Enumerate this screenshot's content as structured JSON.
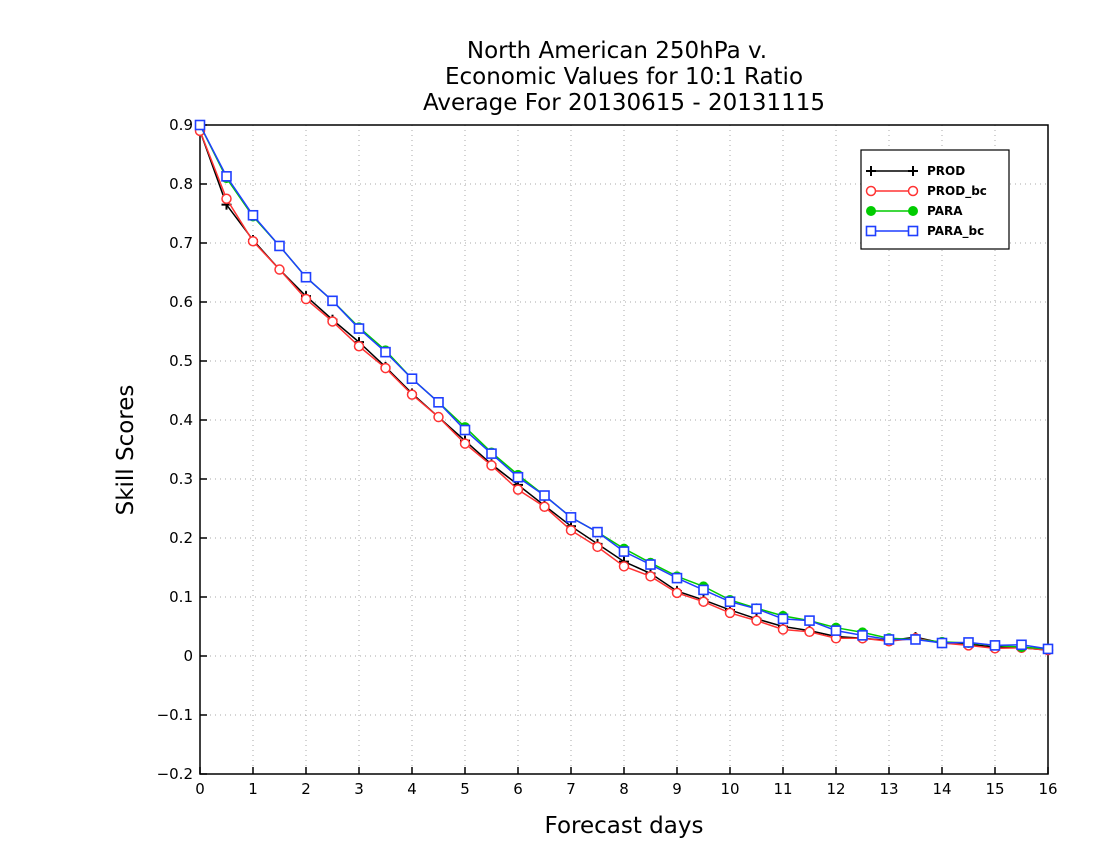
{
  "chart_data": {
    "type": "line",
    "title_lines": [
      "North American 250hPa v.",
      "Economic Values for 10:1 Ratio",
      "Average For 20130615 - 20131115"
    ],
    "xlabel": "Forecast days",
    "ylabel": "Skill Scores",
    "xlim": [
      0,
      16
    ],
    "ylim": [
      -0.2,
      0.9
    ],
    "xticks": [
      0,
      1,
      2,
      3,
      4,
      5,
      6,
      7,
      8,
      9,
      10,
      11,
      12,
      13,
      14,
      15,
      16
    ],
    "yticks": [
      -0.2,
      -0.1,
      0,
      0.1,
      0.2,
      0.3,
      0.4,
      0.5,
      0.6,
      0.7,
      0.8,
      0.9
    ],
    "ytick_labels": [
      "−0.2",
      "−0.1",
      "0",
      "0.1",
      "0.2",
      "0.3",
      "0.4",
      "0.5",
      "0.6",
      "0.7",
      "0.8",
      "0.9"
    ],
    "grid": true,
    "legend_position": "top-right",
    "x": [
      0,
      0.5,
      1,
      1.5,
      2,
      2.5,
      3,
      3.5,
      4,
      4.5,
      5,
      5.5,
      6,
      6.5,
      7,
      7.5,
      8,
      8.5,
      9,
      9.5,
      10,
      10.5,
      11,
      11.5,
      12,
      12.5,
      13,
      13.5,
      14,
      14.5,
      15,
      15.5,
      16
    ],
    "series": [
      {
        "name": "PROD",
        "color": "#000000",
        "marker": "plus",
        "values": [
          0.89,
          0.765,
          0.705,
          0.655,
          0.61,
          0.57,
          0.532,
          0.49,
          0.445,
          0.405,
          0.365,
          0.325,
          0.29,
          0.255,
          0.22,
          0.19,
          0.16,
          0.14,
          0.11,
          0.095,
          0.078,
          0.063,
          0.05,
          0.043,
          0.033,
          0.03,
          0.026,
          0.032,
          0.022,
          0.02,
          0.015,
          0.014,
          0.01
        ]
      },
      {
        "name": "PROD_bc",
        "color": "#ff3333",
        "marker": "circle",
        "values": [
          0.89,
          0.775,
          0.703,
          0.655,
          0.605,
          0.567,
          0.525,
          0.488,
          0.443,
          0.405,
          0.36,
          0.323,
          0.282,
          0.253,
          0.213,
          0.185,
          0.152,
          0.135,
          0.107,
          0.092,
          0.073,
          0.06,
          0.045,
          0.041,
          0.03,
          0.03,
          0.025,
          0.03,
          0.022,
          0.018,
          0.013,
          0.014,
          0.01
        ]
      },
      {
        "name": "PARA",
        "color": "#00cc00",
        "marker": "filled-circle",
        "values": [
          0.9,
          0.81,
          0.745,
          0.695,
          0.642,
          0.602,
          0.557,
          0.518,
          0.47,
          0.43,
          0.388,
          0.345,
          0.307,
          0.272,
          0.235,
          0.21,
          0.182,
          0.158,
          0.135,
          0.118,
          0.095,
          0.081,
          0.068,
          0.06,
          0.048,
          0.04,
          0.03,
          0.028,
          0.024,
          0.022,
          0.018,
          0.015,
          0.012
        ]
      },
      {
        "name": "PARA_bc",
        "color": "#1f3fff",
        "marker": "square",
        "values": [
          0.9,
          0.813,
          0.747,
          0.695,
          0.642,
          0.602,
          0.555,
          0.515,
          0.47,
          0.43,
          0.383,
          0.343,
          0.303,
          0.272,
          0.235,
          0.21,
          0.177,
          0.155,
          0.132,
          0.112,
          0.092,
          0.08,
          0.063,
          0.06,
          0.043,
          0.035,
          0.028,
          0.028,
          0.022,
          0.023,
          0.018,
          0.019,
          0.012
        ]
      }
    ]
  }
}
